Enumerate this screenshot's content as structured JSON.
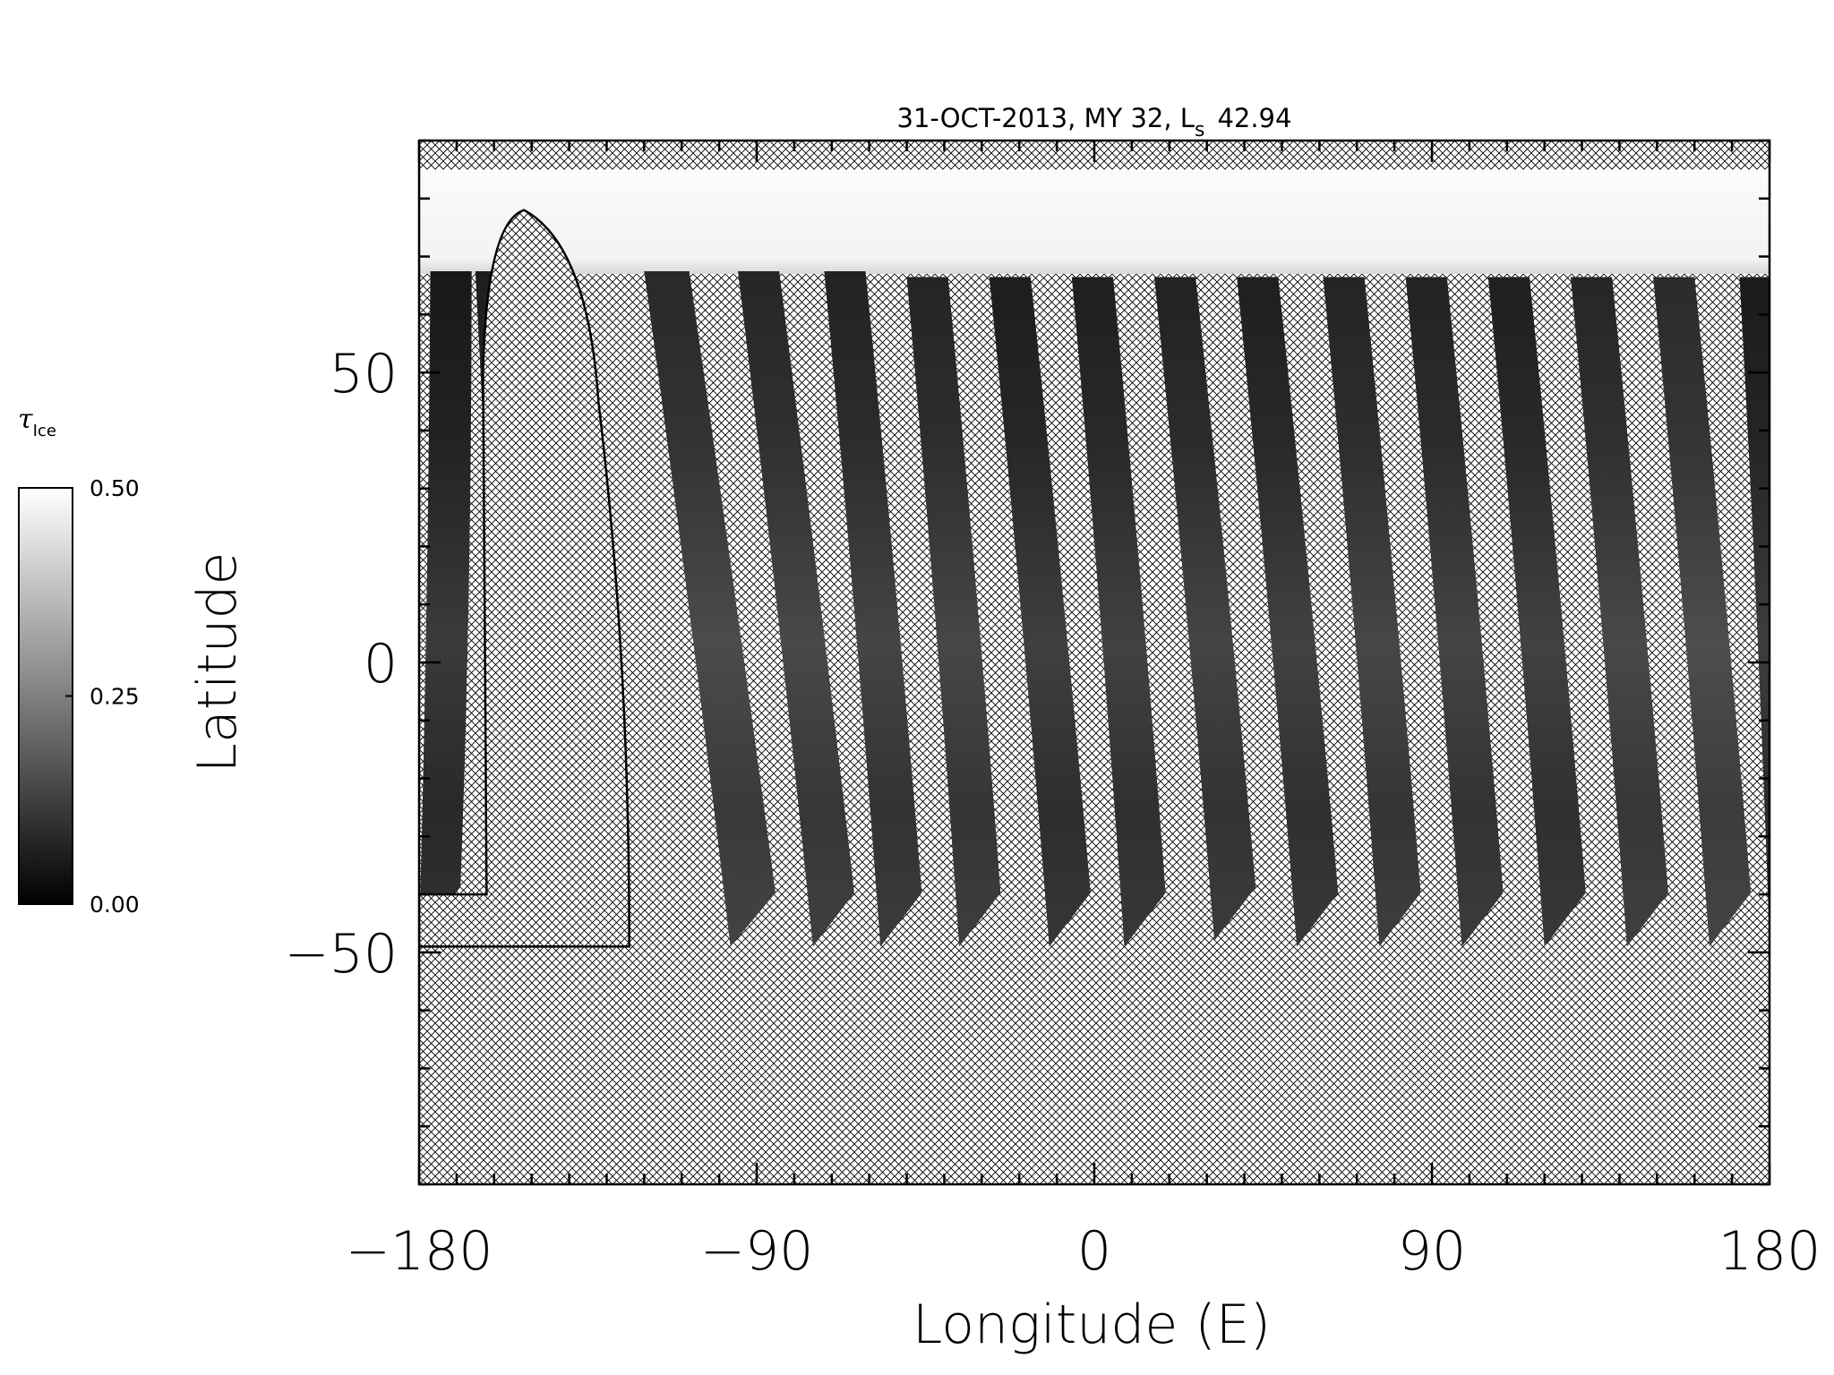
{
  "chart_data": {
    "type": "heatmap",
    "title": "31-OCT-2013, MY 32,  L",
    "title_subscript": "s",
    "title_value": "42.94",
    "xlabel": "Longitude (E)",
    "ylabel": "Latitude",
    "xlim": [
      -180,
      180
    ],
    "ylim": [
      -90,
      90
    ],
    "x_ticks": [
      -180,
      -90,
      0,
      90,
      180
    ],
    "x_tick_labels": [
      "−180",
      "−90",
      "0",
      "90",
      "180"
    ],
    "y_ticks": [
      -50,
      0,
      50
    ],
    "y_tick_labels": [
      "−50",
      "0",
      "50"
    ],
    "x_minor_step": 10,
    "y_minor_step": 10,
    "colorbar": {
      "title": "τ",
      "title_subscript": "Ice",
      "min": 0.0,
      "max": 0.5,
      "tick_values": [
        0.0,
        0.25,
        0.5
      ],
      "tick_labels": [
        "0.00",
        "0.25",
        "0.50"
      ],
      "colormap": "grayscale",
      "placement": "left"
    },
    "no_data_pattern": "crosshatch",
    "north_cap": {
      "lat_top": 85,
      "lat_bottom": 67,
      "value": 0.5
    },
    "swaths": [
      {
        "lon_top": -177,
        "lon_bottom": -180,
        "lat_top": 67,
        "lat_bottom": -48,
        "width": 11,
        "mean_value": 0.08
      },
      {
        "lon_top": -165,
        "lon_bottom": -158,
        "lat_top": 67,
        "lat_bottom": -40,
        "width": 11,
        "mean_value": 0.1
      },
      {
        "lon_top": -120,
        "lon_bottom": -97,
        "lat_top": 67,
        "lat_bottom": -49,
        "width": 12,
        "mean_value": 0.15
      },
      {
        "lon_top": -95,
        "lon_bottom": -75,
        "lat_top": 67,
        "lat_bottom": -49,
        "width": 11,
        "mean_value": 0.14
      },
      {
        "lon_top": -72,
        "lon_bottom": -57,
        "lat_top": 67,
        "lat_bottom": -49,
        "width": 11,
        "mean_value": 0.12
      },
      {
        "lon_top": -50,
        "lon_bottom": -36,
        "lat_top": 66,
        "lat_bottom": -49,
        "width": 11,
        "mean_value": 0.13
      },
      {
        "lon_top": -28,
        "lon_bottom": -12,
        "lat_top": 66,
        "lat_bottom": -49,
        "width": 11,
        "mean_value": 0.1
      },
      {
        "lon_top": -6,
        "lon_bottom": 8,
        "lat_top": 66,
        "lat_bottom": -49,
        "width": 11,
        "mean_value": 0.11
      },
      {
        "lon_top": 16,
        "lon_bottom": 32,
        "lat_top": 66,
        "lat_bottom": -48,
        "width": 11,
        "mean_value": 0.12
      },
      {
        "lon_top": 38,
        "lon_bottom": 54,
        "lat_top": 66,
        "lat_bottom": -49,
        "width": 11,
        "mean_value": 0.11
      },
      {
        "lon_top": 61,
        "lon_bottom": 76,
        "lat_top": 66,
        "lat_bottom": -49,
        "width": 11,
        "mean_value": 0.13
      },
      {
        "lon_top": 83,
        "lon_bottom": 98,
        "lat_top": 66,
        "lat_bottom": -49,
        "width": 11,
        "mean_value": 0.12
      },
      {
        "lon_top": 105,
        "lon_bottom": 120,
        "lat_top": 66,
        "lat_bottom": -49,
        "width": 11,
        "mean_value": 0.11
      },
      {
        "lon_top": 127,
        "lon_bottom": 142,
        "lat_top": 66,
        "lat_bottom": -49,
        "width": 11,
        "mean_value": 0.14
      },
      {
        "lon_top": 149,
        "lon_bottom": 164,
        "lat_top": 66,
        "lat_bottom": -49,
        "width": 11,
        "mean_value": 0.16
      },
      {
        "lon_top": 172,
        "lon_bottom": 180,
        "lat_top": 66,
        "lat_bottom": -48,
        "width": 8,
        "mean_value": 0.09
      }
    ]
  }
}
